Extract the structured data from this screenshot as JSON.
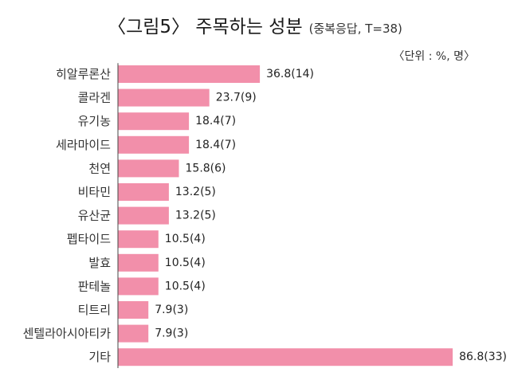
{
  "chart_data": {
    "type": "bar",
    "orientation": "horizontal",
    "title": "〈그림5〉 주목하는 성분",
    "subtitle": "(중복응답, T=38)",
    "unit_note": "〈단위 : %, 명〉",
    "bar_color": "#f28faa",
    "xlim": [
      0,
      90
    ],
    "grid": false,
    "categories": [
      "히알루론산",
      "콜라겐",
      "유기농",
      "세라마이드",
      "천연",
      "비타민",
      "유산균",
      "펩타이드",
      "발효",
      "판테놀",
      "티트리",
      "센텔라아시아티카",
      "기타"
    ],
    "values": [
      36.8,
      23.7,
      18.4,
      18.4,
      15.8,
      13.2,
      13.2,
      10.5,
      10.5,
      10.5,
      7.9,
      7.9,
      86.8
    ],
    "counts": [
      14,
      9,
      7,
      7,
      6,
      5,
      5,
      4,
      4,
      4,
      3,
      3,
      33
    ],
    "value_labels": [
      "36.8(14)",
      "23.7(9)",
      "18.4(7)",
      "18.4(7)",
      "15.8(6)",
      "13.2(5)",
      "13.2(5)",
      "10.5(4)",
      "10.5(4)",
      "10.5(4)",
      "7.9(3)",
      "7.9(3)",
      "86.8(33)"
    ]
  }
}
